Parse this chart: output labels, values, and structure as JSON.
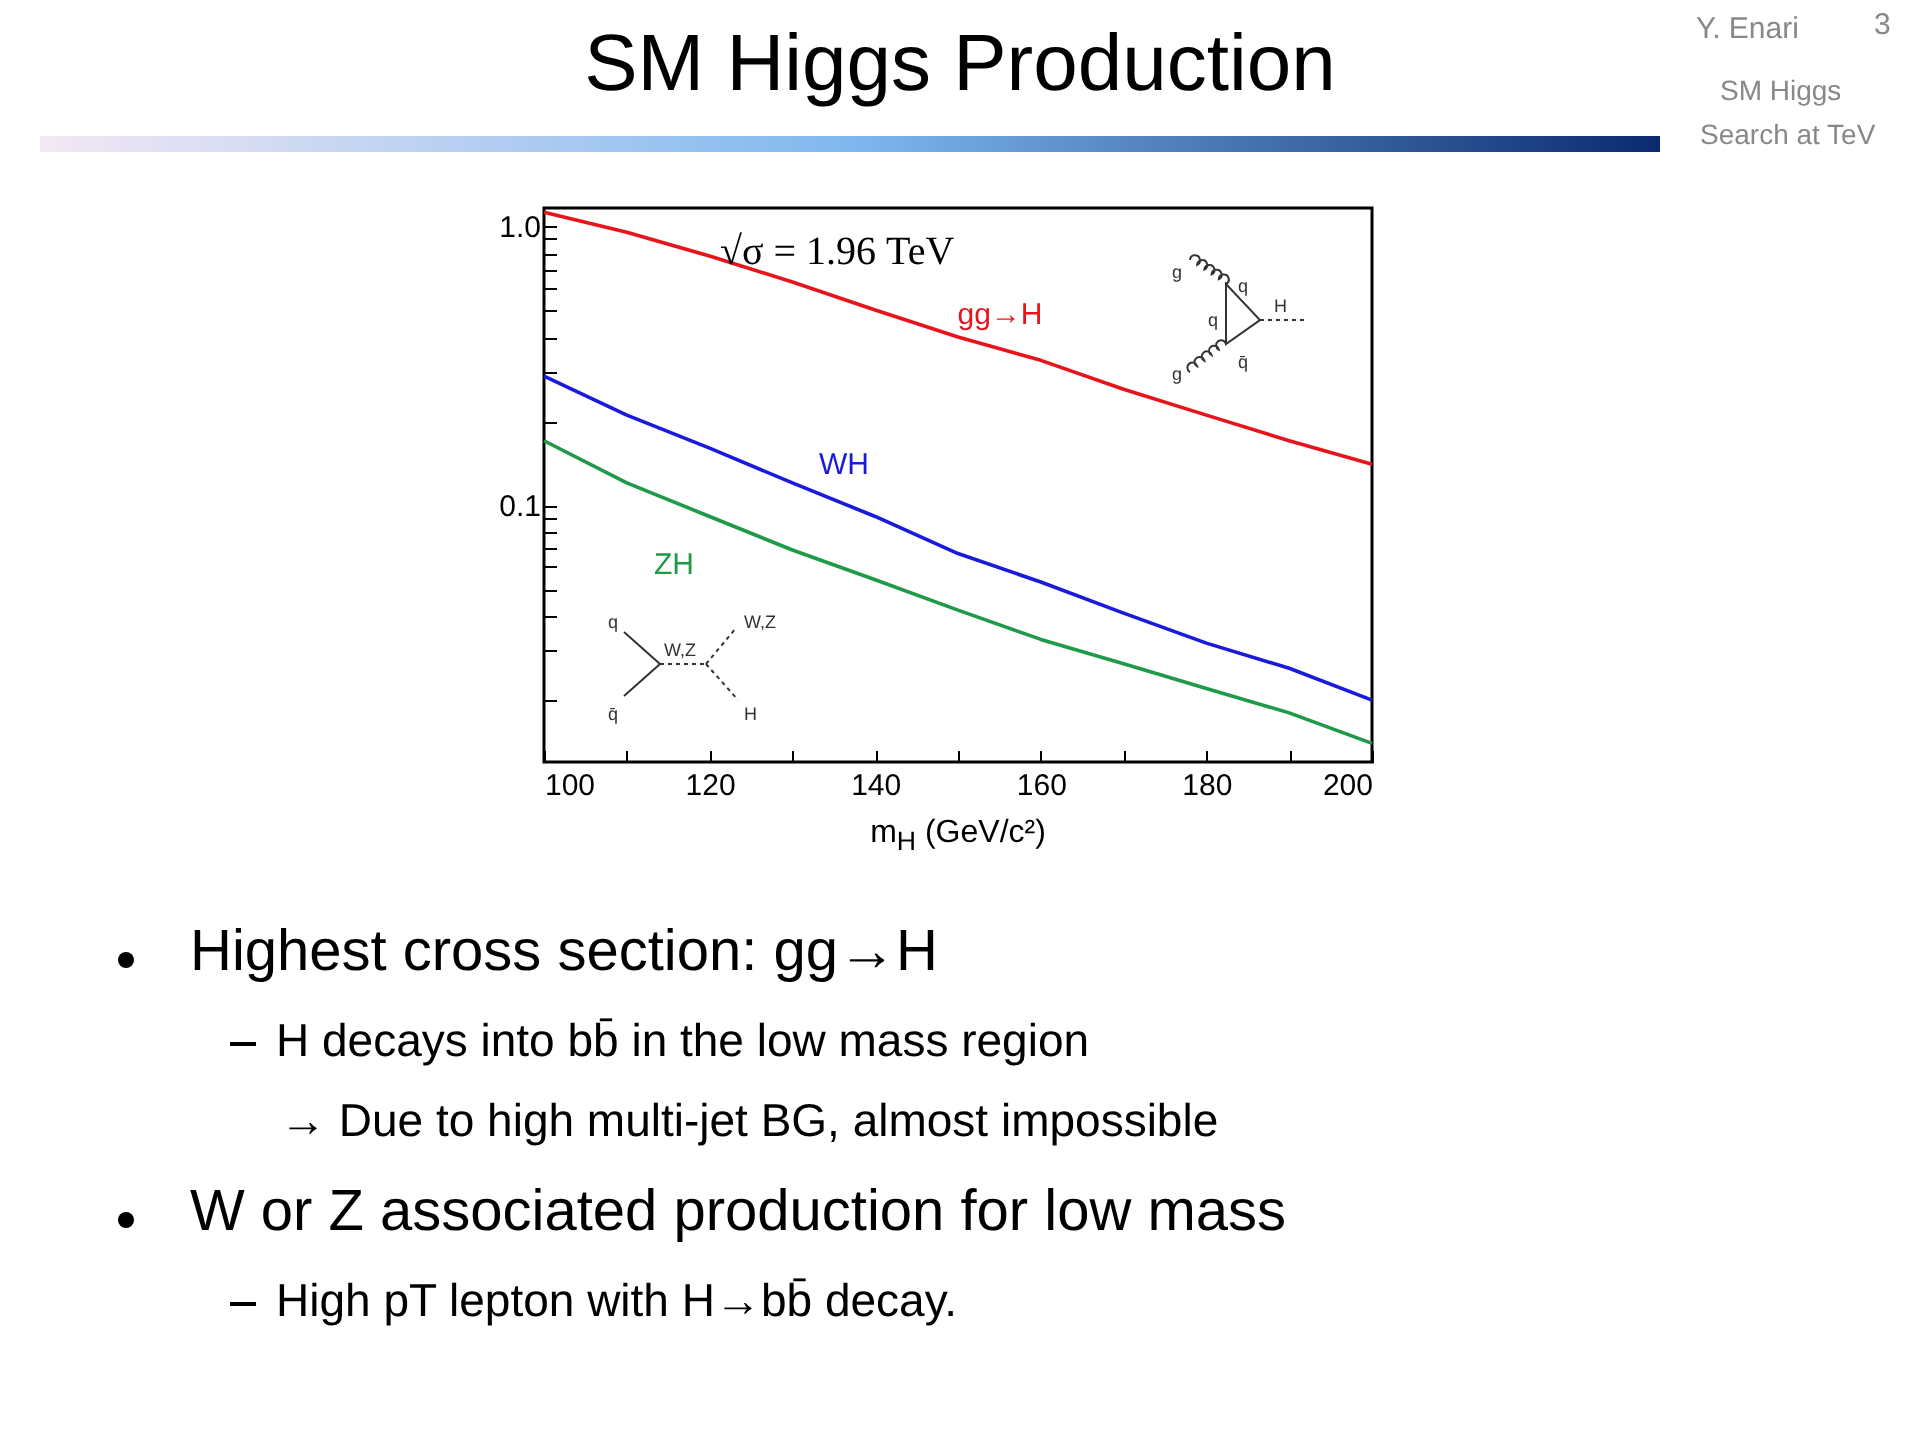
{
  "chart_data": {
    "type": "line",
    "title": "SM Higgs Production",
    "xlabel": "m$_{H}$ (GeV/c²)",
    "log": "y",
    "x": [
      100,
      110,
      120,
      130,
      140,
      150,
      160,
      170,
      180,
      190,
      200
    ],
    "series": [
      {
        "name": "gg→H",
        "color": "#e8141c",
        "values": [
          1.12,
          0.95,
          0.78,
          0.63,
          0.5,
          0.4,
          0.33,
          0.26,
          0.21,
          0.17,
          0.14
        ]
      },
      {
        "name": "WH",
        "color": "#1a1adc",
        "values": [
          0.29,
          0.21,
          0.16,
          0.12,
          0.091,
          0.067,
          0.053,
          0.041,
          0.032,
          0.026,
          0.02
        ]
      },
      {
        "name": "ZH",
        "color": "#1e9a48",
        "values": [
          0.17,
          0.12,
          0.091,
          0.069,
          0.054,
          0.042,
          0.033,
          0.027,
          0.022,
          0.018,
          0.014
        ]
      }
    ],
    "xlim": [
      100,
      200
    ],
    "ylim": [
      0.012,
      1.16
    ],
    "xticks": [
      100,
      {
        "value": 110,
        "label": null
      },
      120,
      {
        "value": 130,
        "label": null
      },
      140,
      {
        "value": 150,
        "label": null
      },
      160,
      {
        "value": 170,
        "label": null
      },
      180,
      {
        "value": 190,
        "label": null
      },
      200
    ],
    "yticks": [
      {
        "value": 0.02,
        "label": null
      },
      {
        "value": 0.03,
        "label": null
      },
      {
        "value": 0.04,
        "label": null
      },
      {
        "value": 0.05,
        "label": null
      },
      {
        "value": 0.06,
        "label": null
      },
      {
        "value": 0.07,
        "label": null
      },
      {
        "value": 0.08,
        "label": null
      },
      {
        "value": 0.09,
        "label": null
      },
      0.1,
      {
        "value": 0.2,
        "label": null
      },
      {
        "value": 0.3,
        "label": null
      },
      {
        "value": 0.4,
        "label": null
      },
      {
        "value": 0.5,
        "label": null
      },
      {
        "value": 0.6,
        "label": null
      },
      {
        "value": 0.7,
        "label": null
      },
      {
        "value": 0.8,
        "label": null
      },
      {
        "value": 0.9,
        "label": null
      },
      {
        "value": 1,
        "label": "1.0"
      }
    ],
    "annotations": [
      "√σ = 1.96 TeV",
      "g",
      "g",
      "q",
      "q",
      "q̄",
      "H",
      "q",
      "q̄",
      "W,Z",
      "W,Z",
      "H",
      "Y. Enari",
      "3",
      "SM Higgs",
      "Search at TeV",
      "Highest cross section: gg→H",
      "H decays into bb̄ in the low mass region",
      "→ Due to high multi-jet BG, almost impossible",
      "W or Z associated production for low mass",
      "High pT lepton with H→bb̄ decay."
    ]
  }
}
